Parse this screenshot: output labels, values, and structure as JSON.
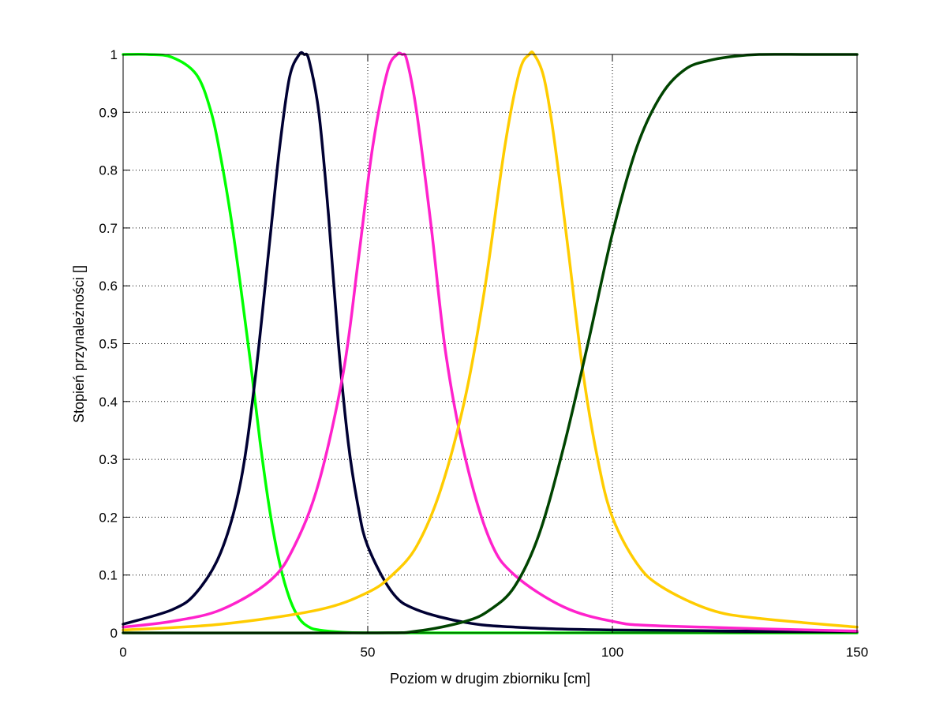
{
  "chart_data": {
    "type": "line",
    "title": "",
    "xlabel": "Poziom w drugim zbiorniku [cm]",
    "ylabel": "Stopień przynależności []",
    "xlim": [
      0,
      150
    ],
    "ylim": [
      0,
      1
    ],
    "grid": true,
    "xticks": [
      "0",
      "50",
      "100",
      "150"
    ],
    "yticks": [
      "0",
      "0.1",
      "0.2",
      "0.3",
      "0.4",
      "0.5",
      "0.6",
      "0.7",
      "0.8",
      "0.9",
      "1"
    ],
    "series": [
      {
        "color": "#00ff00",
        "x": [
          0,
          5,
          10,
          15,
          18,
          20,
          22,
          24,
          26,
          28,
          30,
          32,
          34,
          36,
          38,
          40,
          45,
          50,
          60,
          80,
          100,
          150
        ],
        "y": [
          1.0,
          1.0,
          0.995,
          0.965,
          0.9,
          0.82,
          0.72,
          0.6,
          0.47,
          0.33,
          0.21,
          0.12,
          0.06,
          0.025,
          0.01,
          0.005,
          0.001,
          0.0,
          0.0,
          0.0,
          0.0,
          0.0
        ]
      },
      {
        "color": "#000033",
        "x": [
          0,
          10,
          15,
          20,
          24,
          27,
          30,
          32,
          34,
          36,
          37,
          38,
          40,
          42,
          44,
          46,
          48,
          50,
          55,
          60,
          70,
          80,
          100,
          150
        ],
        "y": [
          0.015,
          0.04,
          0.07,
          0.14,
          0.26,
          0.44,
          0.68,
          0.84,
          0.96,
          1.0,
          1.0,
          0.99,
          0.9,
          0.72,
          0.5,
          0.33,
          0.22,
          0.15,
          0.07,
          0.04,
          0.018,
          0.01,
          0.005,
          0.002
        ]
      },
      {
        "color": "#ff22cc",
        "x": [
          0,
          10,
          20,
          30,
          35,
          40,
          45,
          48,
          51,
          54,
          56,
          57,
          58,
          60,
          63,
          66,
          70,
          75,
          80,
          90,
          100,
          110,
          150
        ],
        "y": [
          0.01,
          0.02,
          0.04,
          0.09,
          0.15,
          0.26,
          0.45,
          0.64,
          0.84,
          0.97,
          1.0,
          1.0,
          0.99,
          0.9,
          0.7,
          0.48,
          0.3,
          0.16,
          0.1,
          0.045,
          0.02,
          0.012,
          0.003
        ]
      },
      {
        "color": "#ffcc00",
        "x": [
          0,
          20,
          40,
          50,
          55,
          60,
          65,
          70,
          74,
          78,
          81,
          83,
          84,
          86,
          88,
          91,
          94,
          97,
          100,
          105,
          110,
          120,
          130,
          150
        ],
        "y": [
          0.005,
          0.015,
          0.04,
          0.07,
          0.1,
          0.15,
          0.25,
          0.41,
          0.6,
          0.84,
          0.97,
          1.0,
          1.0,
          0.96,
          0.86,
          0.66,
          0.45,
          0.3,
          0.2,
          0.12,
          0.08,
          0.04,
          0.025,
          0.01
        ]
      },
      {
        "color": "#004400",
        "x": [
          0,
          50,
          60,
          70,
          75,
          80,
          85,
          90,
          95,
          100,
          105,
          110,
          115,
          120,
          125,
          130,
          140,
          150
        ],
        "y": [
          0.0,
          0.0,
          0.003,
          0.02,
          0.04,
          0.08,
          0.17,
          0.32,
          0.5,
          0.69,
          0.84,
          0.93,
          0.975,
          0.99,
          0.997,
          1.0,
          1.0,
          1.0
        ]
      }
    ]
  }
}
